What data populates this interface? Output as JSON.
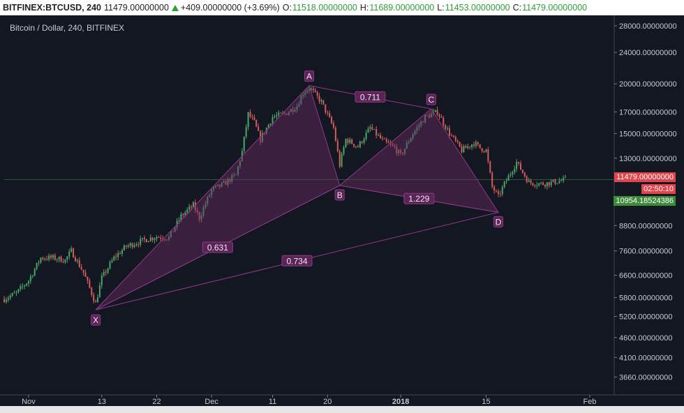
{
  "header": {
    "symbol": "BITFINEX:BTCUSD, 240",
    "last": "11479.00000000",
    "change": "+409.00000000 (+3.69%)",
    "open_label": "O:",
    "open": "11518.00000000",
    "high_label": "H:",
    "high": "11689.00000000",
    "low_label": "L:",
    "low": "11453.00000000",
    "close_label": "C:",
    "close": "11479.00000000"
  },
  "legend": {
    "title": "Bitcoin / Dollar, 240, BITFINEX"
  },
  "price_tags": {
    "last_price": "11479.00000000",
    "countdown": "02:50:10",
    "cursor_price": "10954.18524386"
  },
  "colors": {
    "background": "#131722",
    "pattern_fill": "#6b2b63",
    "pattern_line": "#8e3a86",
    "up_candle": "#4ca66a",
    "down_candle": "#d85a5a",
    "last_price_tag": "#e0454c",
    "cursor_tag": "#3c8a3a"
  },
  "chart_data": {
    "type": "candlestick-harmonic",
    "y_scale": "log",
    "ylim": [
      3300,
      29500
    ],
    "yticks": [
      28000,
      24000,
      20000,
      17000,
      15000,
      13000,
      11479,
      8800,
      7600,
      6600,
      5800,
      5200,
      4600,
      4100,
      3660
    ],
    "ytick_labels": [
      "28000.00000000",
      "24000.00000000",
      "20000.00000000",
      "17000.00000000",
      "15000.00000000",
      "13000.00000000",
      "",
      "8800.00000000",
      "7600.00000000",
      "6600.00000000",
      "5800.00000000",
      "5200.00000000",
      "4600.00000000",
      "4100.00000000",
      "3660.00000000"
    ],
    "xlim": [
      "2017-10-28",
      "2018-02-05"
    ],
    "xticks": [
      {
        "date": "2017-11-01",
        "label": "Nov"
      },
      {
        "date": "2017-11-13",
        "label": "13"
      },
      {
        "date": "2017-11-22",
        "label": "22"
      },
      {
        "date": "2017-12-01",
        "label": "Dec"
      },
      {
        "date": "2017-12-11",
        "label": "11"
      },
      {
        "date": "2017-12-20",
        "label": "20"
      },
      {
        "date": "2018-01-01",
        "label": "2018"
      },
      {
        "date": "2018-01-15",
        "label": "15"
      },
      {
        "date": "2018-02-01",
        "label": "Feb"
      }
    ],
    "pattern_points": [
      {
        "name": "X",
        "date": "2017-11-12",
        "price": 5400
      },
      {
        "name": "A",
        "date": "2017-12-17",
        "price": 19800
      },
      {
        "name": "B",
        "date": "2017-12-22",
        "price": 11100
      },
      {
        "name": "C",
        "date": "2018-01-06",
        "price": 17300
      },
      {
        "name": "D",
        "date": "2018-01-17",
        "price": 9500
      }
    ],
    "ratios": [
      {
        "label": "0.631",
        "between": [
          "X",
          "B"
        ]
      },
      {
        "label": "0.711",
        "between": [
          "A",
          "C"
        ]
      },
      {
        "label": "1.229",
        "between": [
          "B",
          "D"
        ]
      },
      {
        "label": "0.734",
        "between": [
          "X",
          "D"
        ]
      }
    ],
    "series": [
      {
        "values": [
          [
            "2017-10-28",
            5750
          ],
          [
            "2017-10-30",
            5950
          ],
          [
            "2017-11-01",
            6400
          ],
          [
            "2017-11-03",
            7300
          ],
          [
            "2017-11-05",
            7300
          ],
          [
            "2017-11-07",
            7200
          ],
          [
            "2017-11-08",
            7600
          ],
          [
            "2017-11-10",
            6700
          ],
          [
            "2017-11-12",
            5600
          ],
          [
            "2017-11-13",
            6500
          ],
          [
            "2017-11-15",
            7300
          ],
          [
            "2017-11-17",
            7800
          ],
          [
            "2017-11-20",
            8100
          ],
          [
            "2017-11-22",
            8250
          ],
          [
            "2017-11-24",
            8200
          ],
          [
            "2017-11-26",
            9300
          ],
          [
            "2017-11-28",
            9900
          ],
          [
            "2017-11-29",
            9200
          ],
          [
            "2017-11-30",
            10000
          ],
          [
            "2017-12-01",
            10800
          ],
          [
            "2017-12-03",
            11200
          ],
          [
            "2017-12-05",
            11800
          ],
          [
            "2017-12-06",
            13500
          ],
          [
            "2017-12-07",
            16800
          ],
          [
            "2017-12-08",
            16000
          ],
          [
            "2017-12-09",
            14500
          ],
          [
            "2017-12-11",
            16500
          ],
          [
            "2017-12-13",
            16800
          ],
          [
            "2017-12-15",
            17600
          ],
          [
            "2017-12-16",
            19000
          ],
          [
            "2017-12-17",
            19600
          ],
          [
            "2017-12-19",
            18000
          ],
          [
            "2017-12-21",
            15500
          ],
          [
            "2017-12-22",
            12500
          ],
          [
            "2017-12-23",
            14500
          ],
          [
            "2017-12-25",
            13900
          ],
          [
            "2017-12-27",
            15500
          ],
          [
            "2017-12-29",
            14400
          ],
          [
            "2017-12-31",
            13800
          ],
          [
            "2018-01-01",
            13200
          ],
          [
            "2018-01-03",
            15000
          ],
          [
            "2018-01-05",
            16500
          ],
          [
            "2018-01-07",
            17000
          ],
          [
            "2018-01-09",
            15000
          ],
          [
            "2018-01-11",
            13600
          ],
          [
            "2018-01-13",
            14200
          ],
          [
            "2018-01-14",
            13800
          ],
          [
            "2018-01-15",
            13600
          ],
          [
            "2018-01-16",
            11000
          ],
          [
            "2018-01-17",
            10400
          ],
          [
            "2018-01-18",
            11200
          ],
          [
            "2018-01-20",
            12700
          ],
          [
            "2018-01-22",
            11300
          ],
          [
            "2018-01-24",
            11200
          ],
          [
            "2018-01-26",
            11300
          ],
          [
            "2018-01-28",
            11479
          ]
        ]
      }
    ]
  }
}
